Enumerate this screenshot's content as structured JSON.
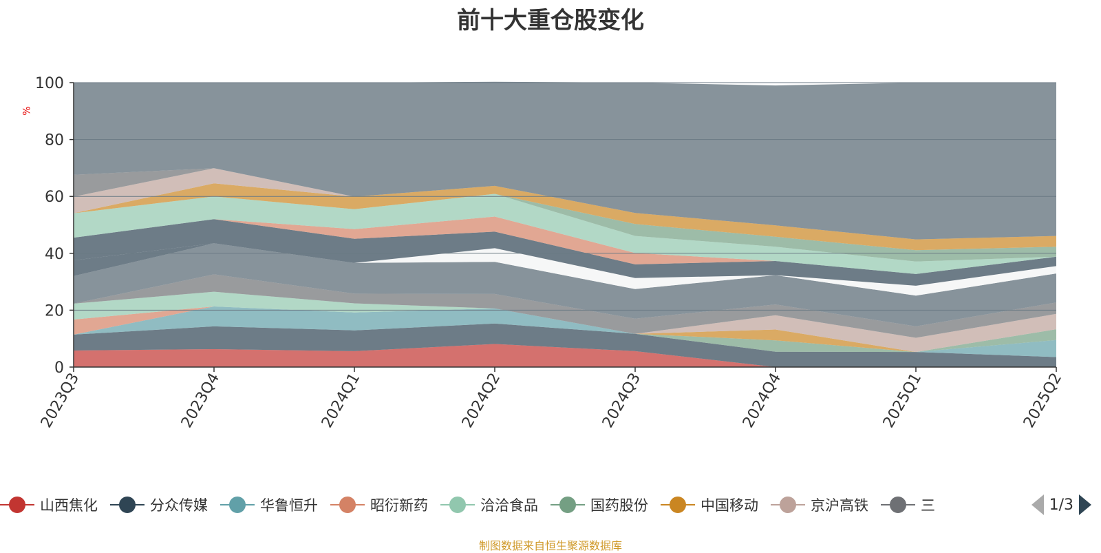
{
  "chart_data": {
    "type": "area",
    "title": "前十大重仓股变化",
    "ylabel": "%",
    "ylim": [
      0,
      100
    ],
    "yticks": [
      0,
      20,
      40,
      60,
      80,
      100
    ],
    "x": [
      "2023Q3",
      "2023Q4",
      "2024Q1",
      "2024Q2",
      "2024Q3",
      "2024Q4",
      "2025Q1",
      "2025Q2"
    ],
    "stacked": true,
    "series": [
      {
        "name": "山西焦化",
        "color": "#c23531",
        "values": [
          5.8,
          6.3,
          5.6,
          8.1,
          5.6,
          0.0,
          0.0,
          0.0
        ]
      },
      {
        "name": "分众传媒",
        "color": "#2f4554",
        "values": [
          5.6,
          8.0,
          7.3,
          7.2,
          6.1,
          5.4,
          5.3,
          3.5
        ]
      },
      {
        "name": "华鲁恒升",
        "color": "#61a0a8",
        "values": [
          0.0,
          7.0,
          6.3,
          5.3,
          0.0,
          0.0,
          0.0,
          6.0
        ]
      },
      {
        "name": "昭衍新药",
        "color": "#d48265",
        "values": [
          5.3,
          0.0,
          0.0,
          0.0,
          0.0,
          0.0,
          0.0,
          0.0
        ]
      },
      {
        "name": "洽洽食品",
        "color": "#91c7ae",
        "values": [
          5.6,
          5.2,
          3.2,
          0.0,
          0.0,
          0.0,
          0.0,
          0.0
        ]
      },
      {
        "name": "国药股份",
        "color": "#749f83",
        "values": [
          0.0,
          0.0,
          0.0,
          0.0,
          0.0,
          4.0,
          0.0,
          3.8
        ]
      },
      {
        "name": "中国移动",
        "color": "#ca8622",
        "values": [
          0.0,
          0.0,
          0.0,
          0.0,
          0.0,
          3.8,
          0.0,
          0.0
        ]
      },
      {
        "name": "京沪高铁",
        "color": "#bda29a",
        "values": [
          0.0,
          0.0,
          0.0,
          0.0,
          0.0,
          5.0,
          5.0,
          5.4
        ]
      },
      {
        "name": "",
        "color": "#6e7074",
        "values": [
          0.0,
          6.1,
          3.4,
          5.1,
          5.3,
          3.8,
          4.0,
          4.0
        ]
      },
      {
        "name": "",
        "color": "#546570",
        "values": [
          9.7,
          10.9,
          10.8,
          11.3,
          10.4,
          10.3,
          10.8,
          10.2
        ]
      },
      {
        "name": "",
        "color": "#f2f3f4",
        "values": [
          0.0,
          0.0,
          0.0,
          4.8,
          3.9,
          0.0,
          3.5,
          2.6
        ]
      },
      {
        "name": "",
        "color": "#2f4554",
        "values": [
          5.5,
          0.0,
          0.0,
          0.0,
          0.0,
          0.0,
          0.0,
          0.0
        ]
      },
      {
        "name": "",
        "color": "#2f4554",
        "values": [
          8.0,
          8.5,
          8.5,
          5.8,
          4.8,
          5.0,
          4.1,
          3.3
        ]
      },
      {
        "name": "",
        "color": "#d48265",
        "values": [
          0.0,
          0.0,
          3.4,
          5.3,
          4.0,
          0.0,
          0.0,
          0.0
        ]
      },
      {
        "name": "",
        "color": "#91c7ae",
        "values": [
          8.6,
          8.0,
          7.0,
          8.0,
          6.0,
          5.0,
          4.4,
          0.0
        ]
      },
      {
        "name": "",
        "color": "#749f83",
        "values": [
          0.0,
          0.0,
          0.0,
          0.0,
          4.2,
          3.5,
          4.0,
          3.5
        ]
      },
      {
        "name": "",
        "color": "#ca8622",
        "values": [
          0.0,
          4.6,
          4.4,
          2.8,
          3.9,
          4.0,
          3.8,
          3.8
        ]
      },
      {
        "name": "",
        "color": "#bda29a",
        "values": [
          5.8,
          5.3,
          0.0,
          0.0,
          0.0,
          0.0,
          0.0,
          0.0
        ]
      },
      {
        "name": "",
        "color": "#6e7074",
        "values": [
          7.7,
          0.0,
          0.0,
          0.0,
          0.0,
          0.0,
          0.0,
          0.0
        ]
      },
      {
        "name": "",
        "color": "#546570",
        "values": [
          32.4,
          30.1,
          40.1,
          36.6,
          45.8,
          49.2,
          55.1,
          53.9
        ]
      }
    ]
  },
  "legend": {
    "items": [
      {
        "label": "山西焦化",
        "color": "#c23531"
      },
      {
        "label": "分众传媒",
        "color": "#2f4554"
      },
      {
        "label": "华鲁恒升",
        "color": "#61a0a8"
      },
      {
        "label": "昭衍新药",
        "color": "#d48265"
      },
      {
        "label": "洽洽食品",
        "color": "#91c7ae"
      },
      {
        "label": "国药股份",
        "color": "#749f83"
      },
      {
        "label": "中国移动",
        "color": "#ca8622"
      },
      {
        "label": "京沪高铁",
        "color": "#bda29a"
      },
      {
        "label": "三",
        "color": "#6e7074"
      }
    ],
    "page": "1/3"
  },
  "footnote": "制图数据来自恒生聚源数据库",
  "colors": {
    "axis": "#333333",
    "grid": "#6b7a84",
    "footnote": "#d09a2b",
    "ylabel": "#e60000"
  }
}
